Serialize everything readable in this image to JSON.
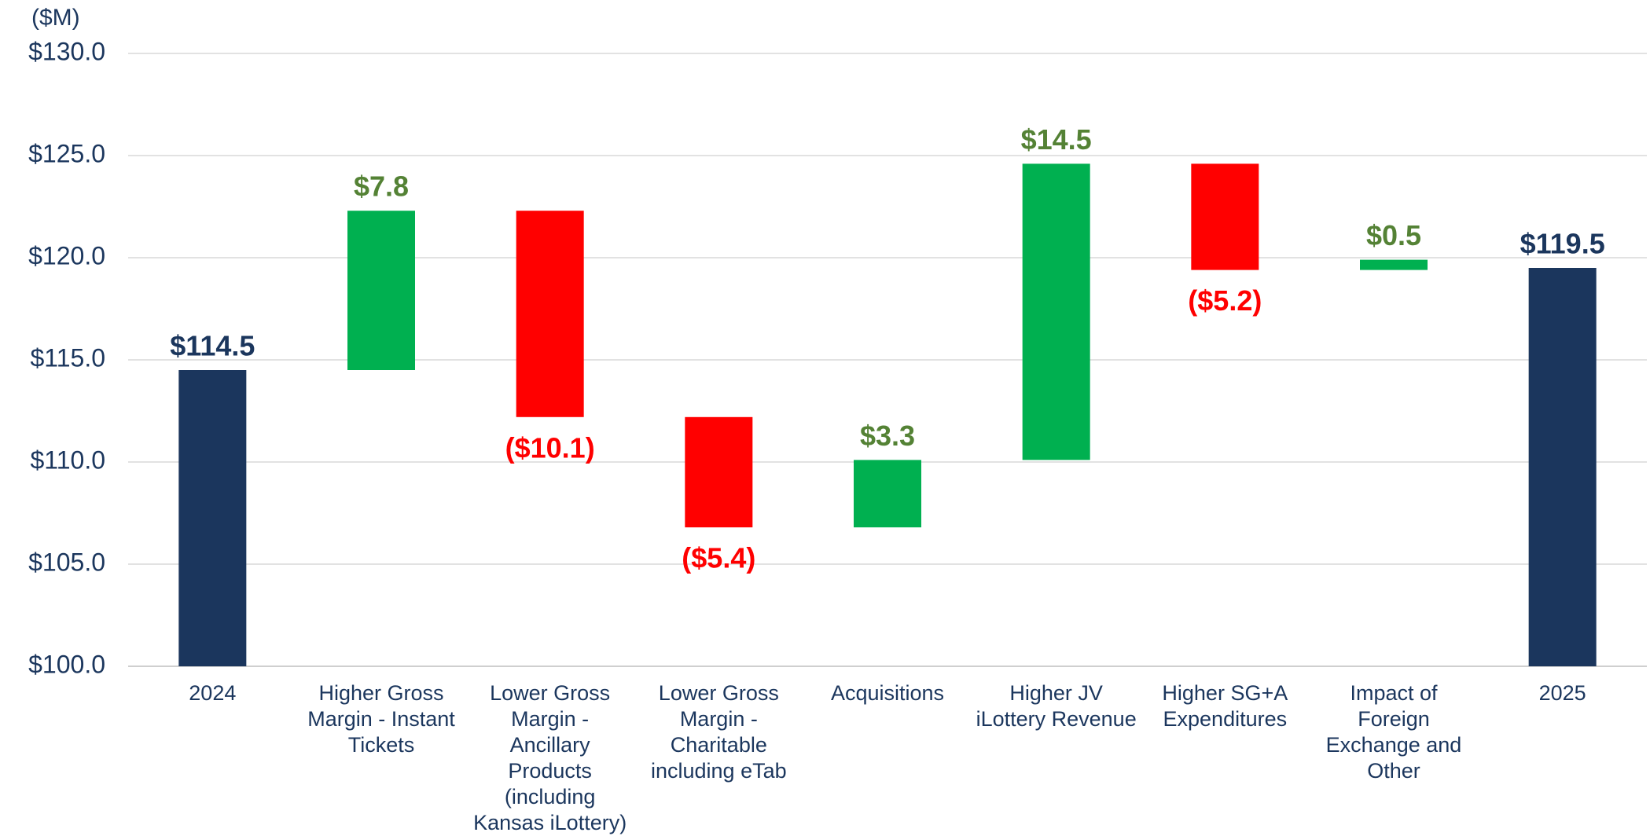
{
  "chart_data": {
    "type": "waterfall",
    "y_axis_label": "($M)",
    "categories": [
      "2024",
      "Higher Gross Margin - Instant Tickets",
      "Lower Gross Margin - Ancillary Products (including Kansas iLottery)",
      "Lower Gross Margin - Charitable including eTab",
      "Acquisitions",
      "Higher JV iLottery Revenue",
      "Higher SG+A Expenditures",
      "Impact of Foreign Exchange and Other",
      "2025"
    ],
    "values": [
      114.5,
      7.8,
      -10.1,
      -5.4,
      3.3,
      14.5,
      -5.2,
      0.5,
      119.5
    ],
    "value_labels": [
      "$114.5",
      "$7.8",
      "($10.1)",
      "($5.4)",
      "$3.3",
      "$14.5",
      "($5.2)",
      "$0.5",
      "$119.5"
    ],
    "totals": [
      0,
      8
    ],
    "colors": {
      "total": "#1b365d",
      "increase": "#00b050",
      "decrease": "#ff0000"
    },
    "label_colors": {
      "total": "#1b365d",
      "increase": "#548235",
      "decrease": "#ff0000"
    },
    "ylim": [
      100,
      130
    ],
    "yticks": [
      {
        "value": 100,
        "label": "$100.0"
      },
      {
        "value": 105,
        "label": "$105.0"
      },
      {
        "value": 110,
        "label": "$110.0"
      },
      {
        "value": 115,
        "label": "$115.0"
      },
      {
        "value": 120,
        "label": "$120.0"
      },
      {
        "value": 125,
        "label": "$125.0"
      },
      {
        "value": 130,
        "label": "$130.0"
      }
    ],
    "grid": true
  }
}
